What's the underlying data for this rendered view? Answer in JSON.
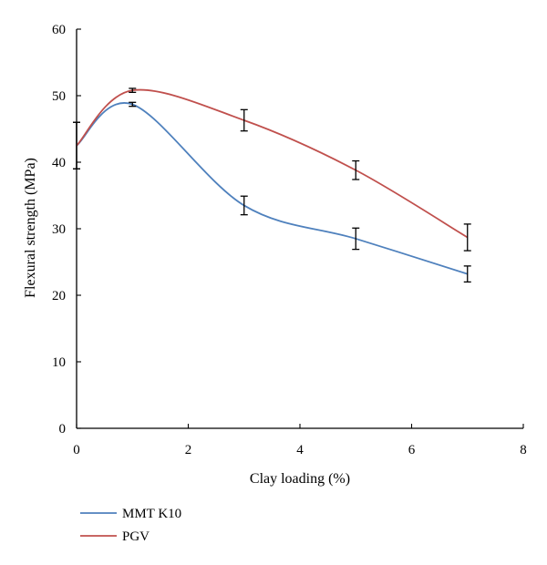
{
  "chart_data": {
    "type": "line",
    "xlabel": "Clay loading (%)",
    "ylabel": "Flexural strength (MPa)",
    "xlim": [
      0,
      8
    ],
    "ylim": [
      0,
      60
    ],
    "xticks": [
      0,
      2,
      4,
      6,
      8
    ],
    "yticks": [
      0,
      10,
      20,
      30,
      40,
      50,
      60
    ],
    "grid": false,
    "legend_position": "bottom-left",
    "series": [
      {
        "name": "MMT K10",
        "color": "#4f81bd",
        "x": [
          0,
          1,
          3,
          5,
          7
        ],
        "y": [
          42.5,
          48.7,
          33.5,
          28.5,
          23.2
        ],
        "error": [
          3.5,
          0.3,
          1.4,
          1.6,
          1.2
        ]
      },
      {
        "name": "PGV",
        "color": "#c0504d",
        "x": [
          0,
          1,
          3,
          5,
          7
        ],
        "y": [
          42.5,
          50.8,
          46.3,
          38.8,
          28.7
        ],
        "error": [
          3.5,
          0.3,
          1.6,
          1.4,
          2.0
        ]
      }
    ]
  }
}
